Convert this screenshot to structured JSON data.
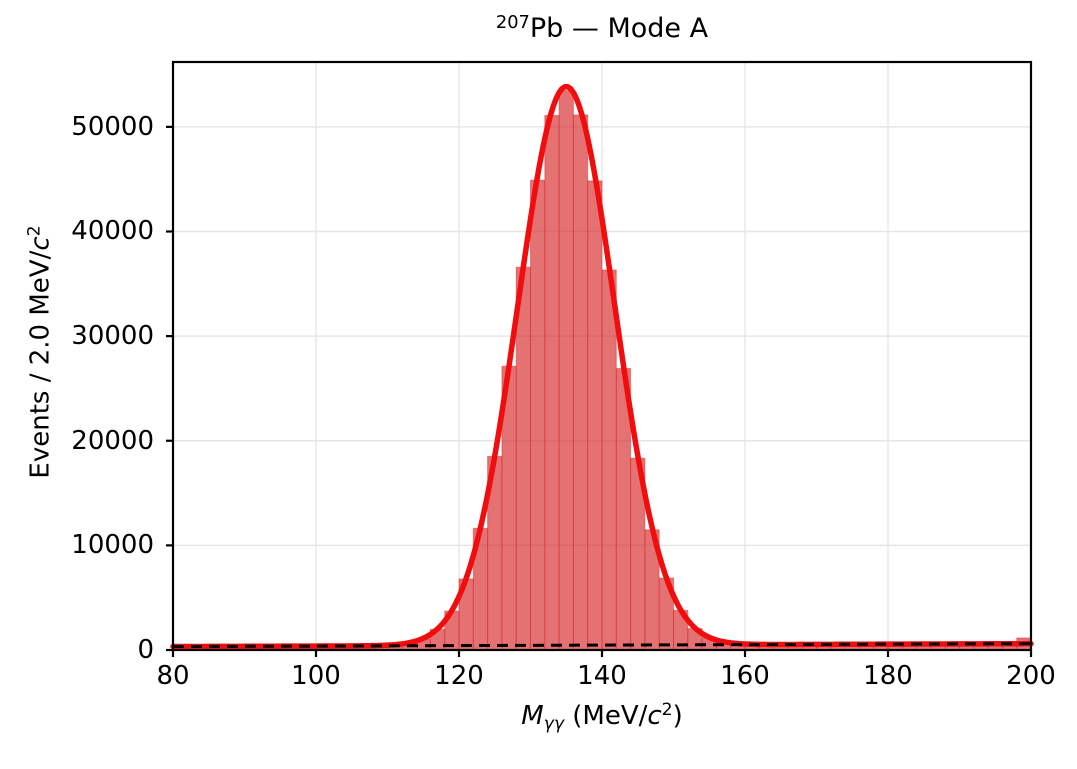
{
  "figure": {
    "title": {
      "sup": "207",
      "main": "Pb — Mode A"
    },
    "xlabel": {
      "var": "M",
      "sub": "γγ",
      "mid": " (MeV/",
      "c": "c",
      "sup": "2",
      "end": ")"
    },
    "ylabel": {
      "pre": "Events / 2.0 MeV/",
      "c": "c",
      "sup": "2"
    }
  },
  "chart_data": {
    "type": "bar",
    "subtype": "histogram-with-fit",
    "title": "²⁰⁷Pb — Mode A",
    "xlabel": "M_γγ (MeV/c²)",
    "ylabel": "Events / 2.0 MeV/c²",
    "xlim": [
      80,
      200
    ],
    "ylim": [
      0,
      56200
    ],
    "xticks": [
      80,
      100,
      120,
      140,
      160,
      180,
      200
    ],
    "yticks": [
      0,
      10000,
      20000,
      30000,
      40000,
      50000
    ],
    "grid": true,
    "legend": "none",
    "bin_width": 2.0,
    "bin_centers": [
      81,
      83,
      85,
      87,
      89,
      91,
      93,
      95,
      97,
      99,
      101,
      103,
      105,
      107,
      109,
      111,
      113,
      115,
      117,
      119,
      121,
      123,
      125,
      127,
      129,
      131,
      133,
      135,
      137,
      139,
      141,
      143,
      145,
      147,
      149,
      151,
      153,
      155,
      157,
      159,
      161,
      163,
      165,
      167,
      169,
      171,
      173,
      175,
      177,
      179,
      181,
      183,
      185,
      187,
      189,
      191,
      193,
      195,
      197,
      199
    ],
    "counts": [
      262,
      249,
      271,
      266,
      280,
      291,
      285,
      302,
      297,
      312,
      318,
      311,
      333,
      346,
      373,
      452,
      642,
      1058,
      1975,
      3716,
      6788,
      11632,
      18505,
      27118,
      36582,
      44906,
      51088,
      53462,
      51139,
      44836,
      36322,
      26904,
      18329,
      11488,
      6872,
      3781,
      2046,
      1163,
      778,
      603,
      524,
      507,
      514,
      506,
      523,
      517,
      534,
      541,
      533,
      552,
      549,
      563,
      571,
      566,
      584,
      577,
      595,
      591,
      608,
      1146
    ],
    "fit_curve": {
      "model": "gaussian + linear background",
      "amplitude": 53400,
      "mean": 135.0,
      "sigma": 6.8,
      "bg_at_xmin": 330,
      "bg_slope_per_mev": 2.3
    },
    "background_line": {
      "style": "dashed",
      "model": "linear background only"
    },
    "colors": {
      "hist_fill": "#d62728",
      "hist_fill_opacity": 0.65,
      "hist_edge": "rgba(214,39,40,0.45)",
      "curve": "#f10d0d",
      "background_dash": "#000000",
      "grid": "#e6e6e6",
      "spine": "#000000"
    }
  }
}
